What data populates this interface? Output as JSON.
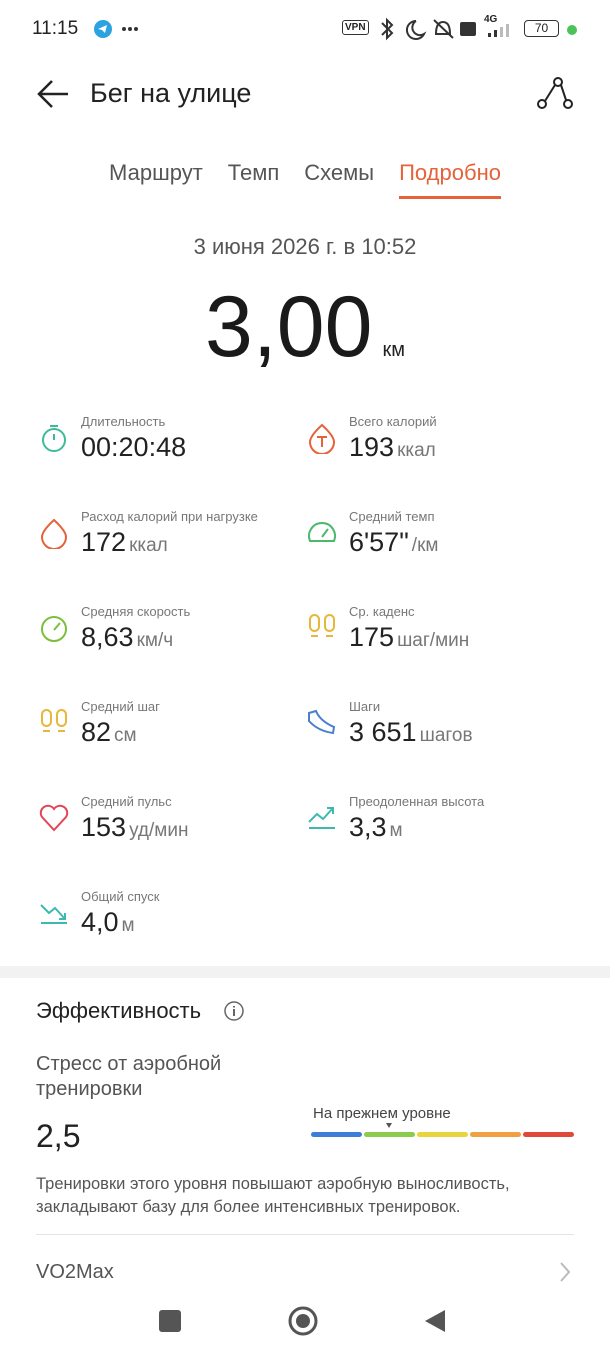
{
  "status_bar": {
    "time": "11:15",
    "vpn": "VPN",
    "network": "4G",
    "battery": "70"
  },
  "header": {
    "title": "Бег на улице"
  },
  "tabs": {
    "items": [
      "Маршрут",
      "Темп",
      "Схемы",
      "Подробно"
    ],
    "active": 3
  },
  "date": "3 июня 2026 г. в 10:52",
  "distance": {
    "value": "3,00",
    "unit": "км"
  },
  "metrics": [
    {
      "label": "Длительность",
      "value": "00:20:48"
    },
    {
      "label": "Всего калорий",
      "value": "193",
      "unit": "ккал"
    },
    {
      "label": "Расход калорий при нагрузке",
      "value": "172",
      "unit": "ккал"
    },
    {
      "label": "Средний темп",
      "value": "6'57\"",
      "unit": "/км"
    },
    {
      "label": "Средняя скорость",
      "value": "8,63",
      "unit": "км/ч"
    },
    {
      "label": "Ср. каденс",
      "value": "175",
      "unit": "шаг/мин"
    },
    {
      "label": "Средний шаг",
      "value": "82",
      "unit": "см"
    },
    {
      "label": "Шаги",
      "value": "3 651",
      "unit": "шагов"
    },
    {
      "label": "Средний пульс",
      "value": "153",
      "unit": "уд/мин"
    },
    {
      "label": "Преодоленная высота",
      "value": "3,3",
      "unit": "м"
    },
    {
      "label": "Общий спуск",
      "value": "4,0",
      "unit": "м"
    }
  ],
  "efficiency": {
    "title": "Эффективность",
    "stress_label": "Стресс от аэробной тренировки",
    "stress_value": "2,5",
    "level": "На прежнем уровне",
    "description": "Тренировки этого уровня повышают аэробную выносливость, закладывают базу для более интенсивных тренировок.",
    "vo2max": "VO2Max"
  }
}
